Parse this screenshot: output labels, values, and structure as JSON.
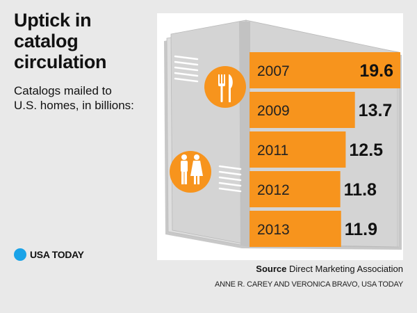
{
  "header": {
    "title_lines": [
      "Uptick in",
      "catalog",
      "circulation"
    ],
    "subtitle_lines": [
      "Catalogs mailed to",
      "U.S. homes, in billions:"
    ]
  },
  "footer": {
    "source_label": "Source",
    "source_text": "Direct Marketing Association",
    "credit": "ANNE R. CAREY AND VERONICA BRAVO, USA TODAY",
    "logo_text": "USA TODAY"
  },
  "colors": {
    "bar": "#f7941d",
    "circle": "#f7941d",
    "logo_dot": "#1aa3e8",
    "page": "#d4d4d4"
  },
  "icons": [
    "fork-knife-icon",
    "couple-icon"
  ],
  "chart_data": {
    "type": "bar",
    "orientation": "horizontal",
    "title": "Uptick in catalog circulation",
    "subtitle": "Catalogs mailed to U.S. homes, in billions:",
    "categories": [
      "2007",
      "2009",
      "2011",
      "2012",
      "2013"
    ],
    "values": [
      19.6,
      13.7,
      12.5,
      11.8,
      11.9
    ],
    "value_labels": [
      "19.6",
      "13.7",
      "12.5",
      "11.8",
      "11.9"
    ],
    "xlim": [
      0,
      19.6
    ],
    "grid": false,
    "legend": "none"
  }
}
